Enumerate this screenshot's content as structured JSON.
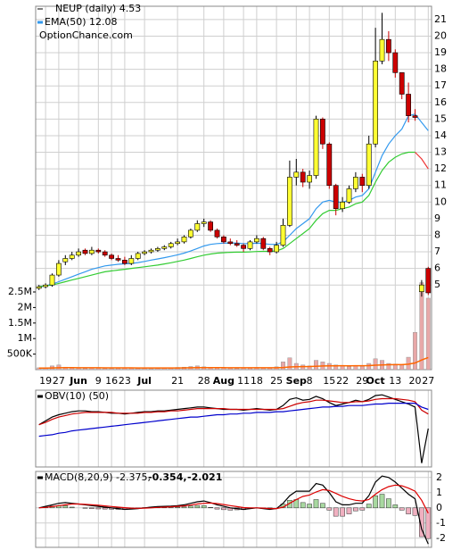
{
  "chart_data": {
    "type": "candlestick",
    "title": "NEUP (daily) 4.53",
    "watermark": "OptionChance.com",
    "categories": [
      null,
      "19",
      null,
      "27",
      null,
      null,
      "Jun",
      null,
      null,
      "9",
      null,
      "16",
      null,
      "23",
      null,
      null,
      "Jul",
      null,
      null,
      null,
      null,
      "21",
      null,
      null,
      null,
      "28",
      null,
      null,
      "Aug",
      null,
      null,
      "11",
      null,
      "18",
      null,
      null,
      "25",
      null,
      null,
      "Sep",
      null,
      "8",
      null,
      null,
      "15",
      null,
      "22",
      null,
      null,
      "29",
      null,
      "Oct",
      null,
      null,
      "13",
      null,
      null,
      "20",
      null,
      "27"
    ],
    "open": [
      4.8,
      4.9,
      5.0,
      5.6,
      6.4,
      6.6,
      6.8,
      7.1,
      6.9,
      7.1,
      7.0,
      6.8,
      6.6,
      6.5,
      6.3,
      6.6,
      6.9,
      7.0,
      7.1,
      7.2,
      7.3,
      7.5,
      7.6,
      7.9,
      8.3,
      8.7,
      8.8,
      8.3,
      7.9,
      7.6,
      7.5,
      7.4,
      7.2,
      7.6,
      7.8,
      7.2,
      7.0,
      7.4,
      8.6,
      11.5,
      11.8,
      11.2,
      11.6,
      15.0,
      13.5,
      11.0,
      9.6,
      10.0,
      10.8,
      11.5,
      11.0,
      13.5,
      18.5,
      19.8,
      19.0,
      17.8,
      16.5,
      15.2,
      4.6,
      6.0
    ],
    "high": [
      5.0,
      5.1,
      5.7,
      6.5,
      6.8,
      7.0,
      7.2,
      7.2,
      7.3,
      7.2,
      7.1,
      6.9,
      6.8,
      6.7,
      6.8,
      7.0,
      7.1,
      7.2,
      7.3,
      7.4,
      7.6,
      7.8,
      8.0,
      8.4,
      8.9,
      9.0,
      8.9,
      8.4,
      8.0,
      7.8,
      7.7,
      7.5,
      7.7,
      8.0,
      7.9,
      7.3,
      7.6,
      9.0,
      12.5,
      12.6,
      12.0,
      11.9,
      15.2,
      15.1,
      13.6,
      11.1,
      10.3,
      11.0,
      11.8,
      11.7,
      14.0,
      20.5,
      21.4,
      20.3,
      19.2,
      17.8,
      17.2,
      15.6,
      5.3,
      6.1
    ],
    "low": [
      4.7,
      4.8,
      4.9,
      5.5,
      6.2,
      6.5,
      6.7,
      6.8,
      6.8,
      6.9,
      6.7,
      6.5,
      6.4,
      6.2,
      6.2,
      6.5,
      6.8,
      6.9,
      7.0,
      7.1,
      7.2,
      7.4,
      7.5,
      7.8,
      8.2,
      8.5,
      8.2,
      7.8,
      7.5,
      7.4,
      7.3,
      7.0,
      7.1,
      7.5,
      7.1,
      6.8,
      6.9,
      7.3,
      8.5,
      11.0,
      10.9,
      10.8,
      11.4,
      13.2,
      10.8,
      9.2,
      9.4,
      9.9,
      10.6,
      10.6,
      10.8,
      13.3,
      18.3,
      18.5,
      17.5,
      16.2,
      14.8,
      14.9,
      4.3,
      4.4
    ],
    "close": [
      4.9,
      5.0,
      5.6,
      6.3,
      6.6,
      6.8,
      7.0,
      6.9,
      7.1,
      7.0,
      6.8,
      6.6,
      6.5,
      6.3,
      6.6,
      6.9,
      7.0,
      7.1,
      7.2,
      7.3,
      7.5,
      7.6,
      7.9,
      8.3,
      8.7,
      8.8,
      8.3,
      7.9,
      7.6,
      7.5,
      7.4,
      7.2,
      7.6,
      7.8,
      7.2,
      7.0,
      7.4,
      8.6,
      11.5,
      11.8,
      11.2,
      11.6,
      15.0,
      13.5,
      11.0,
      9.6,
      10.0,
      10.8,
      11.5,
      11.0,
      13.5,
      18.5,
      19.8,
      19.0,
      17.8,
      16.5,
      15.2,
      15.1,
      5.0,
      4.53
    ],
    "up_color": "#ffff33",
    "down_color": "#cc0000",
    "ylim": [
      -0.1,
      21.8
    ],
    "yticks": [
      5,
      6,
      7,
      8,
      9,
      10,
      11,
      12,
      13,
      14,
      15,
      16,
      17,
      18,
      19,
      20,
      21
    ],
    "grid": true,
    "series": [
      {
        "name": "EMA(50) 12.08",
        "color": "#3399ee",
        "values": [
          4.9,
          4.95,
          5.05,
          5.2,
          5.35,
          5.5,
          5.65,
          5.8,
          5.95,
          6.05,
          6.15,
          6.2,
          6.25,
          6.28,
          6.3,
          6.35,
          6.42,
          6.5,
          6.57,
          6.65,
          6.73,
          6.82,
          6.92,
          7.05,
          7.2,
          7.35,
          7.45,
          7.5,
          7.52,
          7.53,
          7.53,
          7.5,
          7.5,
          7.52,
          7.5,
          7.45,
          7.45,
          7.6,
          8.0,
          8.4,
          8.7,
          9.0,
          9.6,
          10.0,
          10.1,
          10.0,
          10.0,
          10.1,
          10.3,
          10.4,
          10.8,
          11.8,
          12.8,
          13.5,
          14.0,
          14.4,
          15.2,
          15.3,
          14.8,
          14.3
        ]
      },
      {
        "color": "#33cc33",
        "values": [
          4.9,
          4.95,
          5.0,
          5.1,
          5.2,
          5.3,
          5.4,
          5.5,
          5.6,
          5.7,
          5.8,
          5.85,
          5.9,
          5.95,
          6.0,
          6.05,
          6.1,
          6.15,
          6.2,
          6.27,
          6.34,
          6.42,
          6.5,
          6.6,
          6.7,
          6.8,
          6.87,
          6.92,
          6.95,
          6.97,
          6.98,
          6.98,
          7.0,
          7.02,
          7.03,
          7.03,
          7.05,
          7.2,
          7.5,
          7.8,
          8.1,
          8.4,
          8.9,
          9.3,
          9.5,
          9.5,
          9.6,
          9.7,
          9.9,
          10.0,
          10.4,
          11.2,
          11.9,
          12.4,
          12.7,
          12.9,
          13.0,
          13.0,
          null,
          null
        ]
      },
      {
        "color": "#ee3333",
        "values": [
          null,
          null,
          null,
          null,
          null,
          null,
          null,
          null,
          null,
          null,
          null,
          null,
          null,
          null,
          null,
          null,
          null,
          null,
          null,
          null,
          null,
          null,
          null,
          null,
          null,
          null,
          null,
          null,
          null,
          null,
          null,
          null,
          null,
          null,
          null,
          null,
          null,
          null,
          null,
          null,
          null,
          null,
          null,
          null,
          null,
          null,
          null,
          null,
          null,
          null,
          null,
          null,
          null,
          null,
          null,
          null,
          null,
          13.0,
          12.6,
          12.0
        ]
      }
    ],
    "volume": {
      "color": "#e8a8a8",
      "avg_color": "#ff6600",
      "ylim": [
        0,
        2500000
      ],
      "yticks": [
        {
          "value": 500000,
          "label": "500K"
        },
        {
          "value": 1000000,
          "label": "1M"
        },
        {
          "value": 1500000,
          "label": "1.5M"
        },
        {
          "value": 2000000,
          "label": "2M"
        },
        {
          "value": 2500000,
          "label": "2.5M"
        }
      ],
      "values": [
        60000,
        40000,
        120000,
        150000,
        80000,
        60000,
        50000,
        40000,
        60000,
        50000,
        40000,
        40000,
        50000,
        60000,
        50000,
        40000,
        40000,
        30000,
        40000,
        50000,
        60000,
        70000,
        80000,
        100000,
        120000,
        90000,
        70000,
        60000,
        50000,
        50000,
        40000,
        60000,
        50000,
        70000,
        60000,
        50000,
        90000,
        250000,
        380000,
        200000,
        150000,
        120000,
        300000,
        250000,
        200000,
        150000,
        120000,
        100000,
        130000,
        110000,
        200000,
        350000,
        300000,
        200000,
        180000,
        150000,
        400000,
        1200000,
        2800000,
        2300000
      ],
      "avg_values": [
        50000,
        50000,
        55000,
        60000,
        62000,
        62000,
        61000,
        60000,
        60000,
        59000,
        58000,
        57000,
        57000,
        57000,
        57000,
        56000,
        55000,
        54000,
        54000,
        54000,
        55000,
        56000,
        57000,
        59000,
        62000,
        63000,
        63000,
        63000,
        62000,
        61000,
        60000,
        60000,
        59000,
        60000,
        60000,
        59000,
        61000,
        70000,
        85000,
        92000,
        97000,
        100000,
        110000,
        117000,
        122000,
        124000,
        125000,
        124000,
        125000,
        125000,
        130000,
        143000,
        153000,
        157000,
        160000,
        162000,
        175000,
        215000,
        310000,
        390000
      ]
    },
    "obv": {
      "label": "OBV(10) (50)",
      "ylim": [
        -60,
        40
      ],
      "series": [
        {
          "color": "#000000",
          "values": [
            -5,
            0,
            5,
            8,
            10,
            12,
            13,
            13,
            12,
            12,
            11,
            10,
            10,
            9,
            10,
            11,
            12,
            12,
            13,
            13,
            14,
            15,
            16,
            17,
            18,
            18,
            17,
            16,
            15,
            15,
            15,
            14,
            15,
            16,
            15,
            14,
            15,
            20,
            28,
            30,
            27,
            28,
            32,
            29,
            24,
            20,
            22,
            24,
            27,
            25,
            28,
            33,
            34,
            31,
            28,
            25,
            22,
            18,
            -55,
            -10
          ]
        },
        {
          "color": "#cc0000",
          "values": [
            -5,
            -2,
            2,
            5,
            7,
            9,
            10,
            11,
            11,
            11,
            11,
            11,
            10,
            10,
            10,
            10,
            11,
            11,
            12,
            12,
            13,
            13,
            14,
            15,
            16,
            16,
            16,
            16,
            16,
            15,
            15,
            15,
            15,
            15,
            15,
            15,
            15,
            16,
            19,
            22,
            24,
            25,
            27,
            27,
            26,
            25,
            24,
            24,
            25,
            25,
            26,
            28,
            29,
            29,
            29,
            28,
            27,
            25,
            14,
            9
          ]
        },
        {
          "color": "#0000cc",
          "values": [
            -20,
            -19,
            -18,
            -16,
            -15,
            -13,
            -12,
            -11,
            -10,
            -9,
            -8,
            -7,
            -6,
            -5,
            -4,
            -3,
            -2,
            -1,
            0,
            1,
            2,
            3,
            4,
            5,
            5,
            6,
            7,
            8,
            8,
            9,
            9,
            10,
            10,
            11,
            11,
            11,
            12,
            12,
            13,
            14,
            15,
            16,
            17,
            18,
            18,
            19,
            19,
            20,
            20,
            20,
            21,
            22,
            22,
            23,
            23,
            23,
            23,
            23,
            18,
            15
          ]
        }
      ]
    },
    "macd": {
      "label": "MACD(8,20,9) -2.375,",
      "signal_label": "-0.354,",
      "hist_label": "-2.021",
      "ylim": [
        -2.6,
        2.4
      ],
      "yticks": [
        2,
        1,
        0,
        -1,
        -2
      ],
      "macd": {
        "color": "#000000",
        "values": [
          0,
          0.1,
          0.2,
          0.3,
          0.35,
          0.3,
          0.25,
          0.2,
          0.15,
          0.1,
          0.05,
          0,
          -0.05,
          -0.1,
          -0.08,
          -0.05,
          0,
          0.05,
          0.08,
          0.1,
          0.12,
          0.15,
          0.2,
          0.3,
          0.4,
          0.45,
          0.35,
          0.2,
          0.1,
          0,
          -0.05,
          -0.1,
          -0.05,
          0,
          -0.05,
          -0.1,
          -0.05,
          0.3,
          0.8,
          1.1,
          1.1,
          1.1,
          1.6,
          1.5,
          1.0,
          0.4,
          0.2,
          0.2,
          0.3,
          0.3,
          0.8,
          1.7,
          2.1,
          2.0,
          1.7,
          1.3,
          0.9,
          0.6,
          -1.4,
          -2.375
        ]
      },
      "signal": {
        "color": "#dd0000",
        "values": [
          0,
          0.03,
          0.08,
          0.15,
          0.2,
          0.25,
          0.25,
          0.23,
          0.2,
          0.17,
          0.13,
          0.09,
          0.05,
          0.01,
          -0.02,
          -0.03,
          -0.02,
          0,
          0.03,
          0.05,
          0.07,
          0.1,
          0.13,
          0.18,
          0.25,
          0.3,
          0.32,
          0.28,
          0.22,
          0.15,
          0.08,
          0.02,
          0,
          0,
          -0.02,
          -0.05,
          -0.05,
          0.05,
          0.3,
          0.55,
          0.75,
          0.85,
          1.05,
          1.2,
          1.15,
          0.95,
          0.75,
          0.6,
          0.5,
          0.45,
          0.55,
          0.9,
          1.2,
          1.4,
          1.5,
          1.45,
          1.3,
          1.1,
          0.5,
          -0.354
        ]
      },
      "histogram": {
        "color": "#1a4fb0",
        "pos_color": "#a8d8a0",
        "neg_color": "#f0b0c0",
        "values": [
          0,
          0.07,
          0.12,
          0.15,
          0.15,
          0.05,
          0,
          -0.03,
          -0.05,
          -0.07,
          -0.08,
          -0.09,
          -0.1,
          -0.11,
          -0.06,
          -0.02,
          0.02,
          0.05,
          0.05,
          0.05,
          0.05,
          0.05,
          0.07,
          0.12,
          0.15,
          0.15,
          0.03,
          -0.08,
          -0.12,
          -0.15,
          -0.13,
          -0.12,
          -0.05,
          0,
          -0.03,
          -0.05,
          0,
          0.25,
          0.5,
          0.55,
          0.35,
          0.25,
          0.55,
          0.3,
          -0.15,
          -0.55,
          -0.55,
          -0.4,
          -0.2,
          -0.15,
          0.25,
          0.8,
          0.9,
          0.6,
          0.2,
          -0.15,
          -0.4,
          -0.5,
          -1.9,
          -2.021
        ]
      }
    }
  }
}
